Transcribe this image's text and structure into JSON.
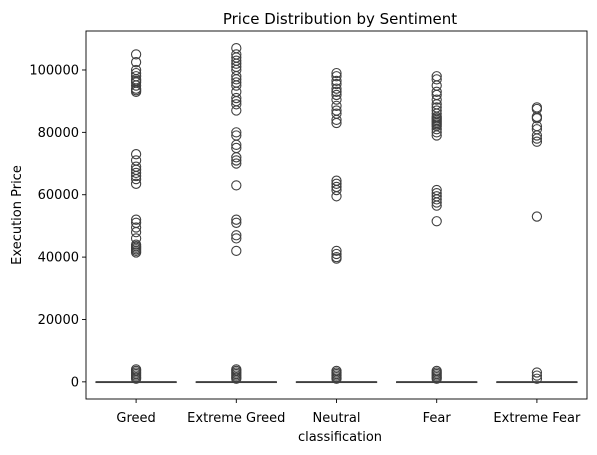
{
  "chart_data": {
    "type": "box",
    "title": "Price Distribution by Sentiment",
    "xlabel": "classification",
    "ylabel": "Execution Price",
    "categories": [
      "Greed",
      "Extreme Greed",
      "Neutral",
      "Fear",
      "Extreme Fear"
    ],
    "ylim": [
      -5500,
      112500
    ],
    "yticks": [
      0,
      20000,
      40000,
      60000,
      80000,
      100000
    ],
    "ytick_labels": [
      "0",
      "20000",
      "40000",
      "60000",
      "80000",
      "100000"
    ],
    "grid": false,
    "box_color": "#3f3f3f",
    "boxes": [
      {
        "category": "Greed",
        "box": [
          0,
          0,
          0,
          0,
          0
        ],
        "outliers": [
          105000,
          102500,
          100000,
          99000,
          98000,
          97000,
          96500,
          96000,
          95000,
          94000,
          93500,
          93000,
          73000,
          71000,
          69000,
          68000,
          67000,
          66000,
          65000,
          63500,
          52000,
          51000,
          49500,
          48000,
          46000,
          44000,
          43500,
          43000,
          42500,
          42000,
          41500,
          4000,
          3500,
          3000,
          2500,
          2000,
          1500,
          1000
        ]
      },
      {
        "category": "Extreme Greed",
        "box": [
          0,
          0,
          0,
          0,
          0
        ],
        "outliers": [
          107000,
          105000,
          104000,
          103000,
          102000,
          101000,
          100000,
          98000,
          97000,
          96000,
          95000,
          93000,
          91000,
          90000,
          89000,
          87000,
          80000,
          79000,
          76000,
          75000,
          72000,
          71000,
          70000,
          63000,
          52000,
          51000,
          47000,
          46000,
          42000,
          4000,
          3500,
          3000,
          2500,
          2000,
          1500,
          1000
        ]
      },
      {
        "category": "Neutral",
        "box": [
          0,
          0,
          0,
          0,
          0
        ],
        "outliers": [
          99000,
          98000,
          96500,
          95500,
          94000,
          93000,
          92000,
          90500,
          88500,
          87000,
          86000,
          84000,
          83000,
          64500,
          63500,
          62500,
          61500,
          59500,
          42000,
          41000,
          40000,
          39500,
          3500,
          3000,
          2500,
          2000,
          1500,
          1000
        ]
      },
      {
        "category": "Fear",
        "box": [
          0,
          0,
          0,
          0,
          0
        ],
        "outliers": [
          98000,
          97000,
          95000,
          93000,
          92000,
          90500,
          89000,
          88000,
          87000,
          86000,
          85000,
          84500,
          84000,
          83500,
          83000,
          82500,
          82000,
          81000,
          80000,
          79000,
          61500,
          60500,
          59500,
          58500,
          57500,
          56500,
          51500,
          3500,
          3000,
          2500,
          2000,
          1500,
          1000
        ]
      },
      {
        "category": "Extreme Fear",
        "box": [
          0,
          0,
          0,
          0,
          0
        ],
        "outliers": [
          88000,
          87500,
          85000,
          84500,
          82000,
          81000,
          79000,
          78000,
          77000,
          53000,
          3000,
          2000,
          1000
        ]
      }
    ]
  }
}
